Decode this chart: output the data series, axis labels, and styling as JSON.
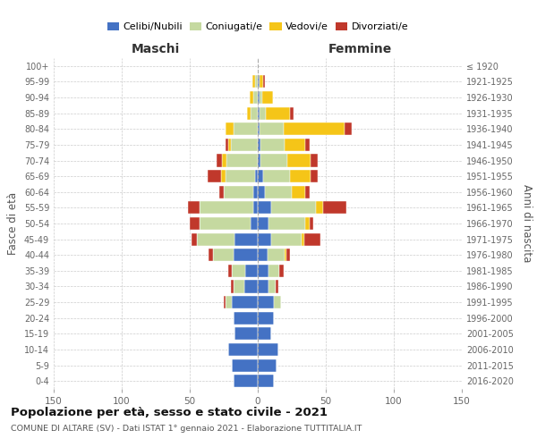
{
  "age_groups": [
    "0-4",
    "5-9",
    "10-14",
    "15-19",
    "20-24",
    "25-29",
    "30-34",
    "35-39",
    "40-44",
    "45-49",
    "50-54",
    "55-59",
    "60-64",
    "65-69",
    "70-74",
    "75-79",
    "80-84",
    "85-89",
    "90-94",
    "95-99",
    "100+"
  ],
  "birth_years": [
    "2016-2020",
    "2011-2015",
    "2006-2010",
    "2001-2005",
    "1996-2000",
    "1991-1995",
    "1986-1990",
    "1981-1985",
    "1976-1980",
    "1971-1975",
    "1966-1970",
    "1961-1965",
    "1956-1960",
    "1951-1955",
    "1946-1950",
    "1941-1945",
    "1936-1940",
    "1931-1935",
    "1926-1930",
    "1921-1925",
    "≤ 1920"
  ],
  "males": {
    "celibi": [
      18,
      19,
      22,
      17,
      18,
      19,
      10,
      9,
      18,
      17,
      5,
      3,
      3,
      2,
      0,
      0,
      0,
      0,
      0,
      0,
      0
    ],
    "coniugati": [
      0,
      0,
      0,
      0,
      0,
      5,
      8,
      10,
      15,
      28,
      38,
      40,
      22,
      22,
      23,
      20,
      18,
      5,
      3,
      2,
      0
    ],
    "vedovi": [
      0,
      0,
      0,
      0,
      0,
      0,
      0,
      0,
      0,
      0,
      0,
      0,
      0,
      3,
      3,
      2,
      6,
      3,
      3,
      2,
      0
    ],
    "divorziati": [
      0,
      0,
      0,
      0,
      0,
      1,
      2,
      3,
      3,
      4,
      7,
      8,
      3,
      10,
      4,
      2,
      0,
      0,
      0,
      0,
      0
    ]
  },
  "females": {
    "nubili": [
      12,
      14,
      15,
      10,
      12,
      12,
      8,
      8,
      7,
      10,
      8,
      10,
      5,
      4,
      2,
      2,
      1,
      1,
      1,
      1,
      0
    ],
    "coniugate": [
      0,
      0,
      0,
      0,
      0,
      5,
      5,
      8,
      13,
      22,
      27,
      33,
      20,
      20,
      20,
      18,
      18,
      5,
      2,
      0,
      0
    ],
    "vedove": [
      0,
      0,
      0,
      0,
      0,
      0,
      0,
      0,
      1,
      2,
      3,
      5,
      10,
      15,
      17,
      15,
      45,
      18,
      8,
      3,
      0
    ],
    "divorziate": [
      0,
      0,
      0,
      0,
      0,
      0,
      2,
      3,
      3,
      12,
      3,
      17,
      3,
      5,
      5,
      3,
      5,
      2,
      0,
      1,
      0
    ]
  },
  "colors": {
    "celibi": "#4472C4",
    "coniugati": "#c5d9a0",
    "vedovi": "#f5c518",
    "divorziati": "#C0382B"
  },
  "xlim": 150,
  "title": "Popolazione per età, sesso e stato civile - 2021",
  "subtitle": "COMUNE DI ALTARE (SV) - Dati ISTAT 1° gennaio 2021 - Elaborazione TUTTITALIA.IT",
  "xlabel_left": "Maschi",
  "xlabel_right": "Femmine",
  "ylabel_left": "Fasce di età",
  "ylabel_right": "Anni di nascita"
}
